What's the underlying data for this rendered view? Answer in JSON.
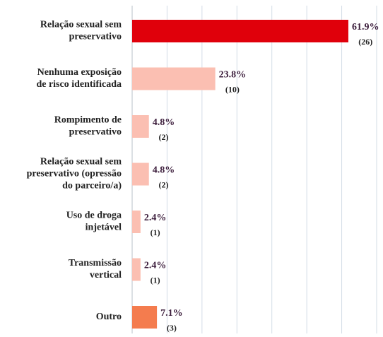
{
  "chart_data": {
    "type": "hbar",
    "categories": [
      [
        "Relação sexual sem",
        "preservativo"
      ],
      [
        "Nenhuma exposição",
        "de risco identificada"
      ],
      [
        "Rompimento de",
        "preservativo"
      ],
      [
        "Relação sexual sem",
        "preservativo (opressão",
        "do parceiro/a)"
      ],
      [
        "Uso de droga",
        "injetável"
      ],
      [
        "Transmissão",
        "vertical"
      ],
      [
        "Outro"
      ]
    ],
    "values": [
      61.9,
      23.8,
      4.8,
      4.8,
      2.4,
      2.4,
      7.1
    ],
    "value_labels": [
      "61.9%",
      "23.8%",
      "4.8%",
      "4.8%",
      "2.4%",
      "2.4%",
      "7.1%"
    ],
    "counts": [
      26,
      10,
      2,
      2,
      1,
      1,
      3
    ],
    "count_labels": [
      "(26)",
      "(10)",
      "(2)",
      "(2)",
      "(1)",
      "(1)",
      "(3)"
    ],
    "colors": [
      "#e0000b",
      "#fbbfb2",
      "#fbbfb2",
      "#fbbfb2",
      "#fbbfb2",
      "#fbbfb2",
      "#f47c4e"
    ],
    "xlim": [
      0,
      70
    ],
    "xticks": [
      0,
      10,
      20,
      30,
      40,
      50,
      60,
      70
    ],
    "grid": true
  }
}
